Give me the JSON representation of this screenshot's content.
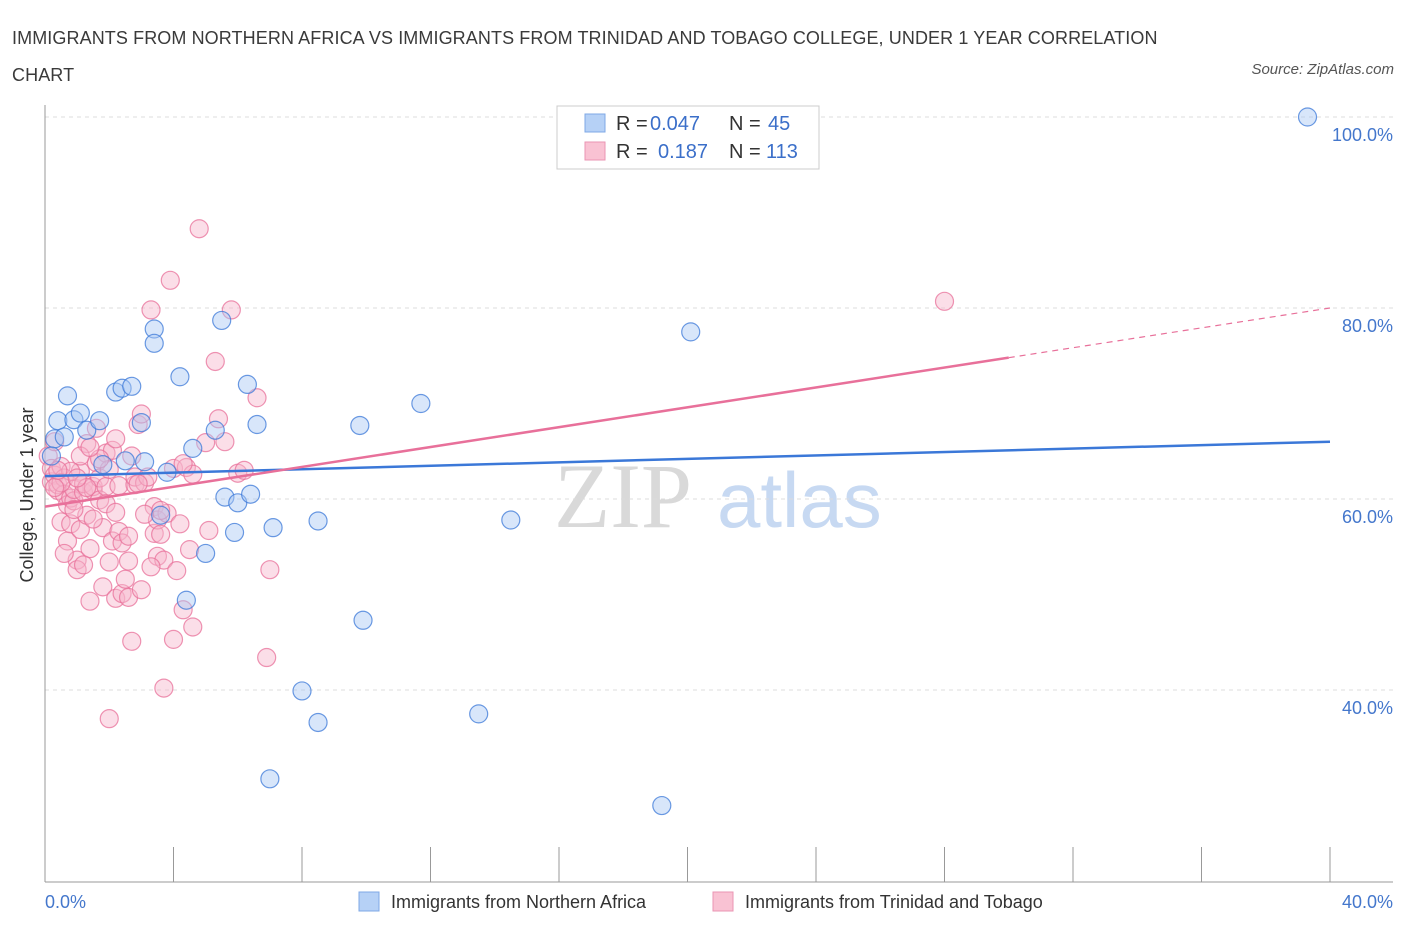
{
  "title": "IMMIGRANTS FROM NORTHERN AFRICA VS IMMIGRANTS FROM TRINIDAD AND TOBAGO COLLEGE, UNDER 1 YEAR CORRELATION CHART",
  "source": "Source: ZipAtlas.com",
  "watermark": {
    "zip": "ZIP",
    "atlas": "atlas"
  },
  "legend": {
    "r_label": "R =",
    "n_label": "N =",
    "series1": {
      "r": "0.047",
      "n": "45"
    },
    "series2": {
      "r": "0.187",
      "n": "113"
    }
  },
  "chart_data": {
    "type": "scatter",
    "title": "IMMIGRANTS FROM NORTHERN AFRICA VS IMMIGRANTS FROM TRINIDAD AND TOBAGO COLLEGE, UNDER 1 YEAR CORRELATION CHART",
    "xlabel": "",
    "ylabel": "College, Under 1 year",
    "xlim": [
      0,
      40
    ],
    "ylim": [
      20,
      100
    ],
    "x_tick_labels": [
      "0.0%",
      "40.0%"
    ],
    "y_ticks": [
      40,
      60,
      80,
      100
    ],
    "y_tick_labels": [
      "40.0%",
      "60.0%",
      "80.0%",
      "100.0%"
    ],
    "grid": true,
    "colors": {
      "series1": "#3b78d8",
      "series2": "#e8709a",
      "series1_fill": "#a9c8f5",
      "series2_fill": "#f7b6cb"
    },
    "series": [
      {
        "name": "Immigrants from Northern Africa",
        "r": 0.047,
        "n": 45,
        "trend": {
          "x0": 0,
          "y0": 62.4,
          "x1": 40,
          "y1": 66.0,
          "solid_to": 40
        },
        "points": [
          [
            0.3,
            66.3
          ],
          [
            0.4,
            68.2
          ],
          [
            0.6,
            66.5
          ],
          [
            0.7,
            70.8
          ],
          [
            0.9,
            68.3
          ],
          [
            1.1,
            69
          ],
          [
            1.3,
            67.2
          ],
          [
            1.7,
            68.2
          ],
          [
            1.8,
            63.6
          ],
          [
            2.2,
            71.2
          ],
          [
            2.4,
            71.6
          ],
          [
            2.7,
            71.8
          ],
          [
            2.5,
            64
          ],
          [
            3.0,
            68
          ],
          [
            3.1,
            63.9
          ],
          [
            3.4,
            77.8
          ],
          [
            3.4,
            76.3
          ],
          [
            3.6,
            58.3
          ],
          [
            3.8,
            62.8
          ],
          [
            4.2,
            72.8
          ],
          [
            4.4,
            49.4
          ],
          [
            4.6,
            65.3
          ],
          [
            5.0,
            54.3
          ],
          [
            5.3,
            67.2
          ],
          [
            5.5,
            78.7
          ],
          [
            5.6,
            60.2
          ],
          [
            5.9,
            56.5
          ],
          [
            6.0,
            59.6
          ],
          [
            6.3,
            72
          ],
          [
            6.4,
            60.5
          ],
          [
            6.6,
            67.8
          ],
          [
            7.0,
            30.7
          ],
          [
            7.1,
            57
          ],
          [
            8.0,
            39.9
          ],
          [
            8.5,
            36.6
          ],
          [
            8.5,
            57.7
          ],
          [
            9.8,
            67.7
          ],
          [
            9.9,
            47.3
          ],
          [
            11.7,
            70
          ],
          [
            13.5,
            37.5
          ],
          [
            14.5,
            57.8
          ],
          [
            19.2,
            27.9
          ],
          [
            20.1,
            77.5
          ],
          [
            39.3,
            100
          ],
          [
            0.2,
            64.5
          ]
        ]
      },
      {
        "name": "Immigrants from Trinidad and Tobago",
        "r": 0.187,
        "n": 113,
        "trend": {
          "x0": 0,
          "y0": 59.2,
          "x1": 40,
          "y1": 80.0,
          "solid_to": 30
        },
        "points": [
          [
            0.1,
            64.5
          ],
          [
            0.2,
            63.2
          ],
          [
            0.2,
            61.8
          ],
          [
            0.3,
            66
          ],
          [
            0.3,
            62.5
          ],
          [
            0.4,
            60.9
          ],
          [
            0.4,
            61.5
          ],
          [
            0.5,
            63.4
          ],
          [
            0.5,
            57.6
          ],
          [
            0.6,
            62.2
          ],
          [
            0.6,
            60.5
          ],
          [
            0.7,
            59.4
          ],
          [
            0.7,
            55.6
          ],
          [
            0.8,
            60.1
          ],
          [
            0.8,
            57.4
          ],
          [
            0.9,
            59.8
          ],
          [
            0.9,
            61
          ],
          [
            1.0,
            53.6
          ],
          [
            1.0,
            52.6
          ],
          [
            1.1,
            56.8
          ],
          [
            1.1,
            62.9
          ],
          [
            1.2,
            60.7
          ],
          [
            1.2,
            61.6
          ],
          [
            1.3,
            58.3
          ],
          [
            1.3,
            65.8
          ],
          [
            1.4,
            54.8
          ],
          [
            1.4,
            49.3
          ],
          [
            1.5,
            60.9
          ],
          [
            1.5,
            61.3
          ],
          [
            1.6,
            67.4
          ],
          [
            1.6,
            63.8
          ],
          [
            1.7,
            62.2
          ],
          [
            1.7,
            59.9
          ],
          [
            1.8,
            50.8
          ],
          [
            1.8,
            57
          ],
          [
            1.9,
            64.8
          ],
          [
            1.9,
            61.3
          ],
          [
            2.0,
            53.4
          ],
          [
            2.0,
            37
          ],
          [
            2.1,
            65.1
          ],
          [
            2.1,
            55.6
          ],
          [
            2.2,
            66.3
          ],
          [
            2.2,
            49.6
          ],
          [
            2.3,
            56.6
          ],
          [
            2.3,
            61.4
          ],
          [
            2.4,
            50.1
          ],
          [
            2.5,
            51.6
          ],
          [
            2.6,
            49.7
          ],
          [
            2.6,
            53.5
          ],
          [
            2.7,
            64.5
          ],
          [
            2.7,
            45.1
          ],
          [
            2.8,
            61.5
          ],
          [
            2.8,
            62.3
          ],
          [
            2.9,
            67.8
          ],
          [
            3.0,
            50.5
          ],
          [
            3.0,
            68.9
          ],
          [
            3.1,
            61.7
          ],
          [
            3.2,
            62.3
          ],
          [
            3.3,
            79.8
          ],
          [
            3.4,
            59.2
          ],
          [
            3.4,
            56.4
          ],
          [
            3.5,
            57.8
          ],
          [
            3.5,
            54
          ],
          [
            3.6,
            56.3
          ],
          [
            3.7,
            53.6
          ],
          [
            3.7,
            40.2
          ],
          [
            3.8,
            58.5
          ],
          [
            3.9,
            82.9
          ],
          [
            4.0,
            63.2
          ],
          [
            4.1,
            52.5
          ],
          [
            4.2,
            57.4
          ],
          [
            4.3,
            48.4
          ],
          [
            4.4,
            63.3
          ],
          [
            4.5,
            54.7
          ],
          [
            4.6,
            62.6
          ],
          [
            4.8,
            88.3
          ],
          [
            5.1,
            56.7
          ],
          [
            5.3,
            74.4
          ],
          [
            5.4,
            68.4
          ],
          [
            5.6,
            66
          ],
          [
            5.8,
            79.8
          ],
          [
            6.0,
            62.7
          ],
          [
            6.2,
            63
          ],
          [
            6.6,
            70.6
          ],
          [
            6.9,
            43.4
          ],
          [
            7.0,
            52.6
          ],
          [
            4.0,
            45.3
          ],
          [
            3.3,
            52.9
          ],
          [
            2.4,
            55.4
          ],
          [
            1.9,
            59.5
          ],
          [
            1.5,
            57.9
          ],
          [
            1.1,
            64.5
          ],
          [
            0.8,
            62.9
          ],
          [
            0.6,
            54.3
          ],
          [
            0.5,
            61.7
          ],
          [
            1.3,
            61.2
          ],
          [
            2.0,
            63.1
          ],
          [
            2.9,
            61.6
          ],
          [
            3.6,
            58.8
          ],
          [
            4.3,
            63.7
          ],
          [
            5.0,
            65.9
          ],
          [
            1.7,
            64.2
          ],
          [
            2.2,
            58.6
          ],
          [
            0.9,
            58.9
          ],
          [
            1.4,
            65.4
          ],
          [
            0.3,
            61.2
          ],
          [
            2.6,
            56.1
          ],
          [
            3.1,
            58.4
          ],
          [
            1.0,
            62.2
          ],
          [
            4.6,
            46.6
          ],
          [
            28.0,
            80.7
          ],
          [
            1.2,
            53.1
          ],
          [
            0.4,
            63.0
          ]
        ]
      }
    ]
  },
  "bottom_legend": {
    "series1": "Immigrants from Northern Africa",
    "series2": "Immigrants from Trinidad and Tobago"
  }
}
